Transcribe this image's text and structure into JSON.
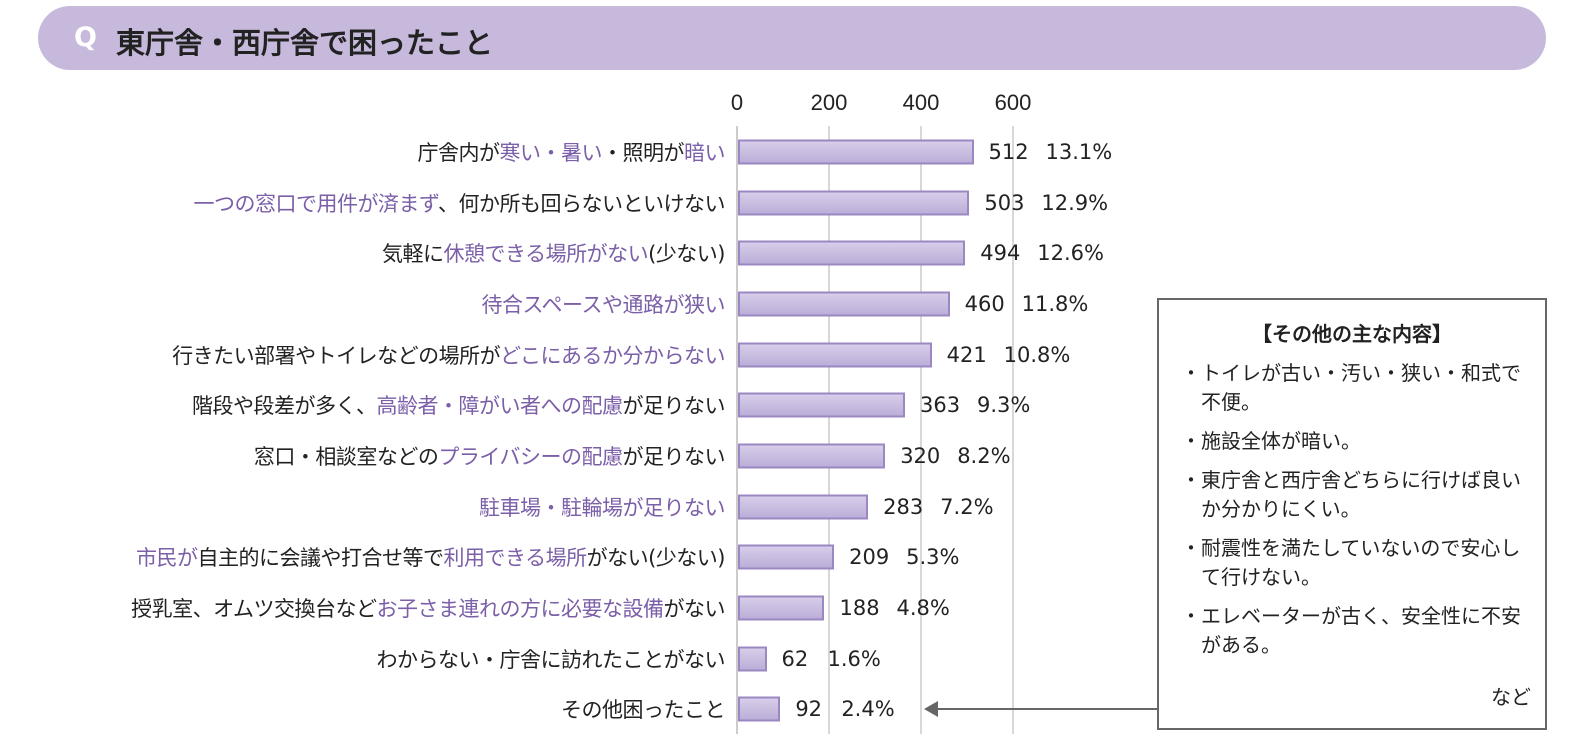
{
  "header": {
    "q": "Q",
    "title": "東庁舎・西庁舎で困ったこと"
  },
  "colors": {
    "highlight": "#7b5fa8",
    "bar_fill": "#c9bce0",
    "bar_border": "#9a88c2",
    "header_bg": "#c6b9dc"
  },
  "chart_data": {
    "type": "bar",
    "orientation": "horizontal",
    "xlim": [
      0,
      600
    ],
    "xticks": [
      "0",
      "200",
      "400",
      "600"
    ],
    "grid": true,
    "categories": [
      [
        {
          "t": "庁舎内が",
          "h": false
        },
        {
          "t": "寒い・暑い",
          "h": true
        },
        {
          "t": "・照明が",
          "h": false
        },
        {
          "t": "暗い",
          "h": true
        }
      ],
      [
        {
          "t": "一つの窓口で用件が済まず",
          "h": true
        },
        {
          "t": "、何か所も回らないといけない",
          "h": false
        }
      ],
      [
        {
          "t": "気軽に",
          "h": false
        },
        {
          "t": "休憩できる場所がない",
          "h": true
        },
        {
          "t": "(少ない)",
          "h": false
        }
      ],
      [
        {
          "t": "待合スペースや通路が狭い",
          "h": true
        }
      ],
      [
        {
          "t": "行きたい部署やトイレなどの場所が",
          "h": false
        },
        {
          "t": "どこにあるか分からない",
          "h": true
        }
      ],
      [
        {
          "t": "階段や段差が多く、",
          "h": false
        },
        {
          "t": "高齢者・障がい者への配慮",
          "h": true
        },
        {
          "t": "が足りない",
          "h": false
        }
      ],
      [
        {
          "t": "窓口・相談室などの",
          "h": false
        },
        {
          "t": "プライバシーの配慮",
          "h": true
        },
        {
          "t": "が足りない",
          "h": false
        }
      ],
      [
        {
          "t": "駐車場・駐輪場が足りない",
          "h": true
        }
      ],
      [
        {
          "t": "市民が",
          "h": true
        },
        {
          "t": "自主的に会議や打合せ等で",
          "h": false
        },
        {
          "t": "利用できる場所",
          "h": true
        },
        {
          "t": "がない(少ない)",
          "h": false
        }
      ],
      [
        {
          "t": "授乳室、オムツ交換台など",
          "h": false
        },
        {
          "t": "お子さま連れの方に必要な設備",
          "h": true
        },
        {
          "t": "がない",
          "h": false
        }
      ],
      [
        {
          "t": "わからない・庁舎に訪れたことがない",
          "h": false
        }
      ],
      [
        {
          "t": "その他困ったこと",
          "h": false
        }
      ]
    ],
    "values": [
      512,
      503,
      494,
      460,
      421,
      363,
      320,
      283,
      209,
      188,
      62,
      92
    ],
    "value_labels": [
      "512",
      "503",
      "494",
      "460",
      "421",
      "363",
      "320",
      "283",
      "209",
      "188",
      "62",
      "92"
    ],
    "percent_labels": [
      "13.1%",
      "12.9%",
      "12.6%",
      "11.8%",
      "10.8%",
      "9.3%",
      "8.2%",
      "7.2%",
      "5.3%",
      "4.8%",
      "1.6%",
      "2.4%"
    ]
  },
  "callout": {
    "title": "【その他の主な内容】",
    "items": [
      "トイレが古い・汚い・狭い・和式で不便。",
      "施設全体が暗い。",
      "東庁舎と西庁舎どちらに行けば良いか分かりにくい。",
      "耐震性を満たしていないので安心して行けない。",
      "エレベーターが古く、安全性に不安がある。"
    ],
    "etc": "など"
  }
}
